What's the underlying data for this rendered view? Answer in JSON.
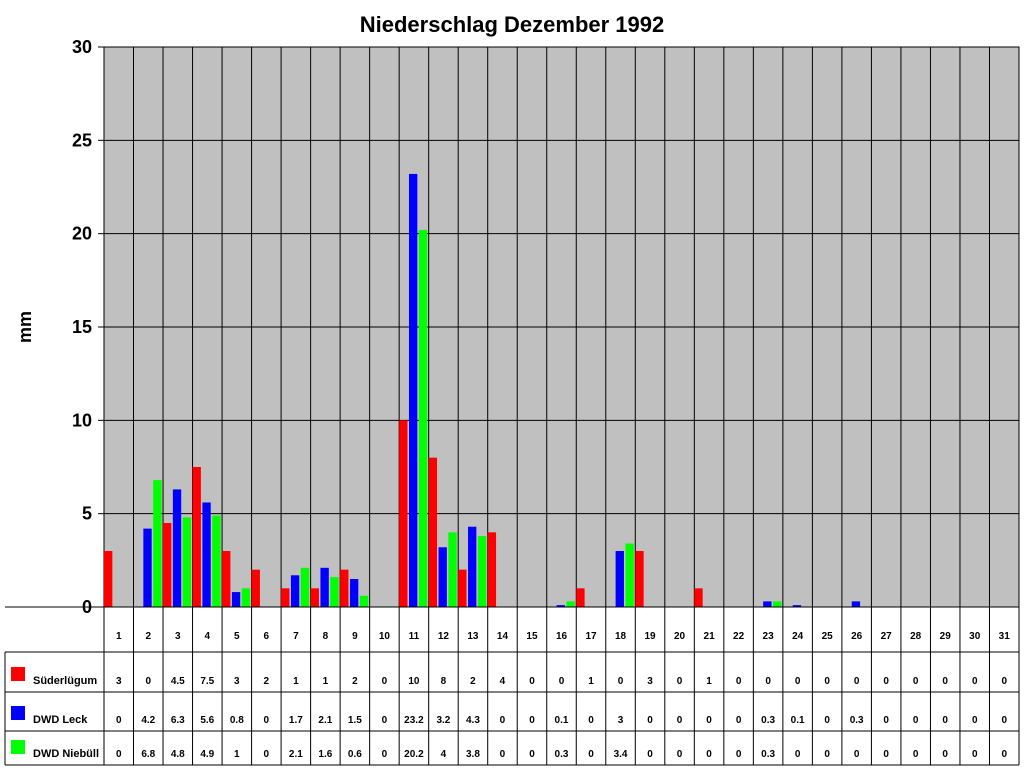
{
  "chart_data": {
    "type": "bar",
    "title": "Niederschlag Dezember 1992",
    "ylabel": "mm",
    "xlabel": "",
    "ylim": [
      0,
      30
    ],
    "yticks": [
      0,
      5,
      10,
      15,
      20,
      25,
      30
    ],
    "grid": true,
    "legend": "data-table",
    "categories": [
      "1",
      "2",
      "3",
      "4",
      "5",
      "6",
      "7",
      "8",
      "9",
      "10",
      "11",
      "12",
      "13",
      "14",
      "15",
      "16",
      "17",
      "18",
      "19",
      "20",
      "21",
      "22",
      "23",
      "24",
      "25",
      "26",
      "27",
      "28",
      "29",
      "30",
      "31"
    ],
    "series": [
      {
        "name": "Süderlügum",
        "color": "#ff0000",
        "values": [
          3,
          0,
          4.5,
          7.5,
          3,
          2,
          1,
          1,
          2,
          0,
          10,
          8,
          2,
          4,
          0,
          0,
          1,
          0,
          3,
          0,
          1,
          0,
          0,
          0,
          0,
          0,
          0,
          0,
          0,
          0,
          0
        ]
      },
      {
        "name": "DWD Leck",
        "color": "#0000ff",
        "values": [
          0,
          4.2,
          6.3,
          5.6,
          0.8,
          0,
          1.7,
          2.1,
          1.5,
          0,
          23.2,
          3.2,
          4.3,
          0,
          0,
          0.1,
          0,
          3,
          0,
          0,
          0,
          0,
          0.3,
          0.1,
          0,
          0.3,
          0,
          0,
          0,
          0,
          0
        ]
      },
      {
        "name": "DWD Niebüll",
        "color": "#00ff00",
        "values": [
          0,
          6.8,
          4.8,
          4.9,
          1,
          0,
          2.1,
          1.6,
          0.6,
          0,
          20.2,
          4,
          3.8,
          0,
          0,
          0.3,
          0,
          3.4,
          0,
          0,
          0,
          0,
          0.3,
          0,
          0,
          0,
          0,
          0,
          0,
          0,
          0
        ]
      }
    ],
    "plot_background": "#c0c0c0"
  }
}
